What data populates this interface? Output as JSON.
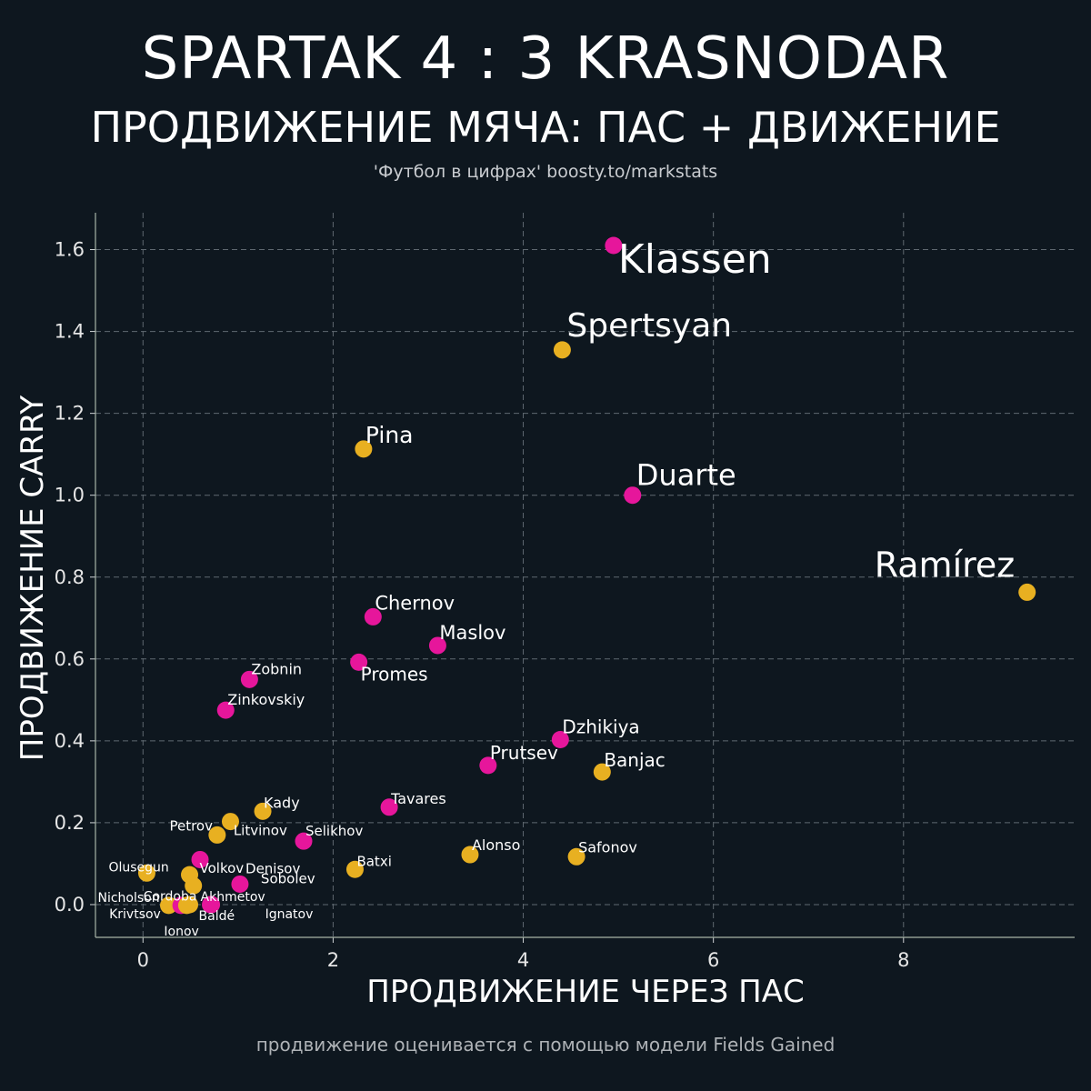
{
  "header": {
    "title": "SPARTAK 4 : 3 KRASNODAR",
    "subtitle": "ПРОДВИЖЕНИЕ МЯЧА: ПАС + ДВИЖЕНИЕ",
    "credit": "'Футбол в цифрах' boosty.to/markstats"
  },
  "footnote": "продвижение оценивается с помощью модели Fields Gained",
  "colors": {
    "background": "#0e171f",
    "spartak": "#e6169b",
    "krasnodar": "#e8b021"
  },
  "chart_data": {
    "type": "scatter",
    "xlabel": "ПРОДВИЖЕНИЕ ЧЕРЕЗ ПАС",
    "ylabel": "ПРОДВИЖЕНИЕ CARRY",
    "xlim": [
      -0.5,
      9.8
    ],
    "ylim": [
      -0.08,
      1.69
    ],
    "xticks": [
      0,
      2,
      4,
      6,
      8
    ],
    "yticks": [
      0.0,
      0.2,
      0.4,
      0.6,
      0.8,
      1.0,
      1.2,
      1.4,
      1.6
    ],
    "grid": true,
    "points": [
      {
        "name": "Klassen",
        "x": 4.95,
        "y": 1.61,
        "team": "spartak"
      },
      {
        "name": "Spertsyan",
        "x": 4.41,
        "y": 1.355,
        "team": "krasnodar"
      },
      {
        "name": "Pina",
        "x": 2.32,
        "y": 1.113,
        "team": "krasnodar"
      },
      {
        "name": "Duarte",
        "x": 5.15,
        "y": 1.0,
        "team": "spartak"
      },
      {
        "name": "Ramírez",
        "x": 9.3,
        "y": 0.763,
        "team": "krasnodar"
      },
      {
        "name": "Chernov",
        "x": 2.42,
        "y": 0.703,
        "team": "spartak"
      },
      {
        "name": "Maslov",
        "x": 3.1,
        "y": 0.633,
        "team": "spartak"
      },
      {
        "name": "Promes",
        "x": 2.27,
        "y": 0.592,
        "team": "spartak"
      },
      {
        "name": "Zobnin",
        "x": 1.12,
        "y": 0.55,
        "team": "spartak"
      },
      {
        "name": "Zinkovskiy",
        "x": 0.87,
        "y": 0.475,
        "team": "spartak"
      },
      {
        "name": "Dzhikiya",
        "x": 4.39,
        "y": 0.403,
        "team": "spartak"
      },
      {
        "name": "Prutsev",
        "x": 3.63,
        "y": 0.34,
        "team": "spartak"
      },
      {
        "name": "Banjac",
        "x": 4.83,
        "y": 0.324,
        "team": "krasnodar"
      },
      {
        "name": "Tavares",
        "x": 2.59,
        "y": 0.238,
        "team": "spartak"
      },
      {
        "name": "Kady",
        "x": 1.26,
        "y": 0.228,
        "team": "krasnodar"
      },
      {
        "name": "Petrov",
        "x": 0.92,
        "y": 0.203,
        "team": "krasnodar"
      },
      {
        "name": "Litvinov",
        "x": 0.78,
        "y": 0.17,
        "team": "krasnodar"
      },
      {
        "name": "Selikhov",
        "x": 1.69,
        "y": 0.155,
        "team": "spartak"
      },
      {
        "name": "Safonov",
        "x": 4.56,
        "y": 0.117,
        "team": "krasnodar"
      },
      {
        "name": "Alonso",
        "x": 3.44,
        "y": 0.122,
        "team": "krasnodar"
      },
      {
        "name": "Denisov",
        "x": 0.6,
        "y": 0.11,
        "team": "spartak"
      },
      {
        "name": "Batxi",
        "x": 2.23,
        "y": 0.086,
        "team": "krasnodar"
      },
      {
        "name": "Volkov",
        "x": 0.49,
        "y": 0.073,
        "team": "krasnodar"
      },
      {
        "name": "Olusegun",
        "x": 0.04,
        "y": 0.077,
        "team": "krasnodar"
      },
      {
        "name": "Cordoba",
        "x": 0.53,
        "y": 0.046,
        "team": "krasnodar"
      },
      {
        "name": "Sobolev",
        "x": 1.02,
        "y": 0.05,
        "team": "spartak"
      },
      {
        "name": "Nicholson",
        "x": 0.27,
        "y": -0.002,
        "team": "krasnodar"
      },
      {
        "name": "Akhmetov",
        "x": 0.49,
        "y": 0.0,
        "team": "krasnodar"
      },
      {
        "name": "Krivtsov",
        "x": 0.4,
        "y": -0.002,
        "team": "spartak"
      },
      {
        "name": "Baldé",
        "x": 0.71,
        "y": 0.0,
        "team": "spartak"
      },
      {
        "name": "Ionov",
        "x": 0.46,
        "y": -0.002,
        "team": "krasnodar"
      },
      {
        "name": "Ignatov",
        "x": 0.72,
        "y": 0.0,
        "team": "spartak"
      }
    ]
  }
}
